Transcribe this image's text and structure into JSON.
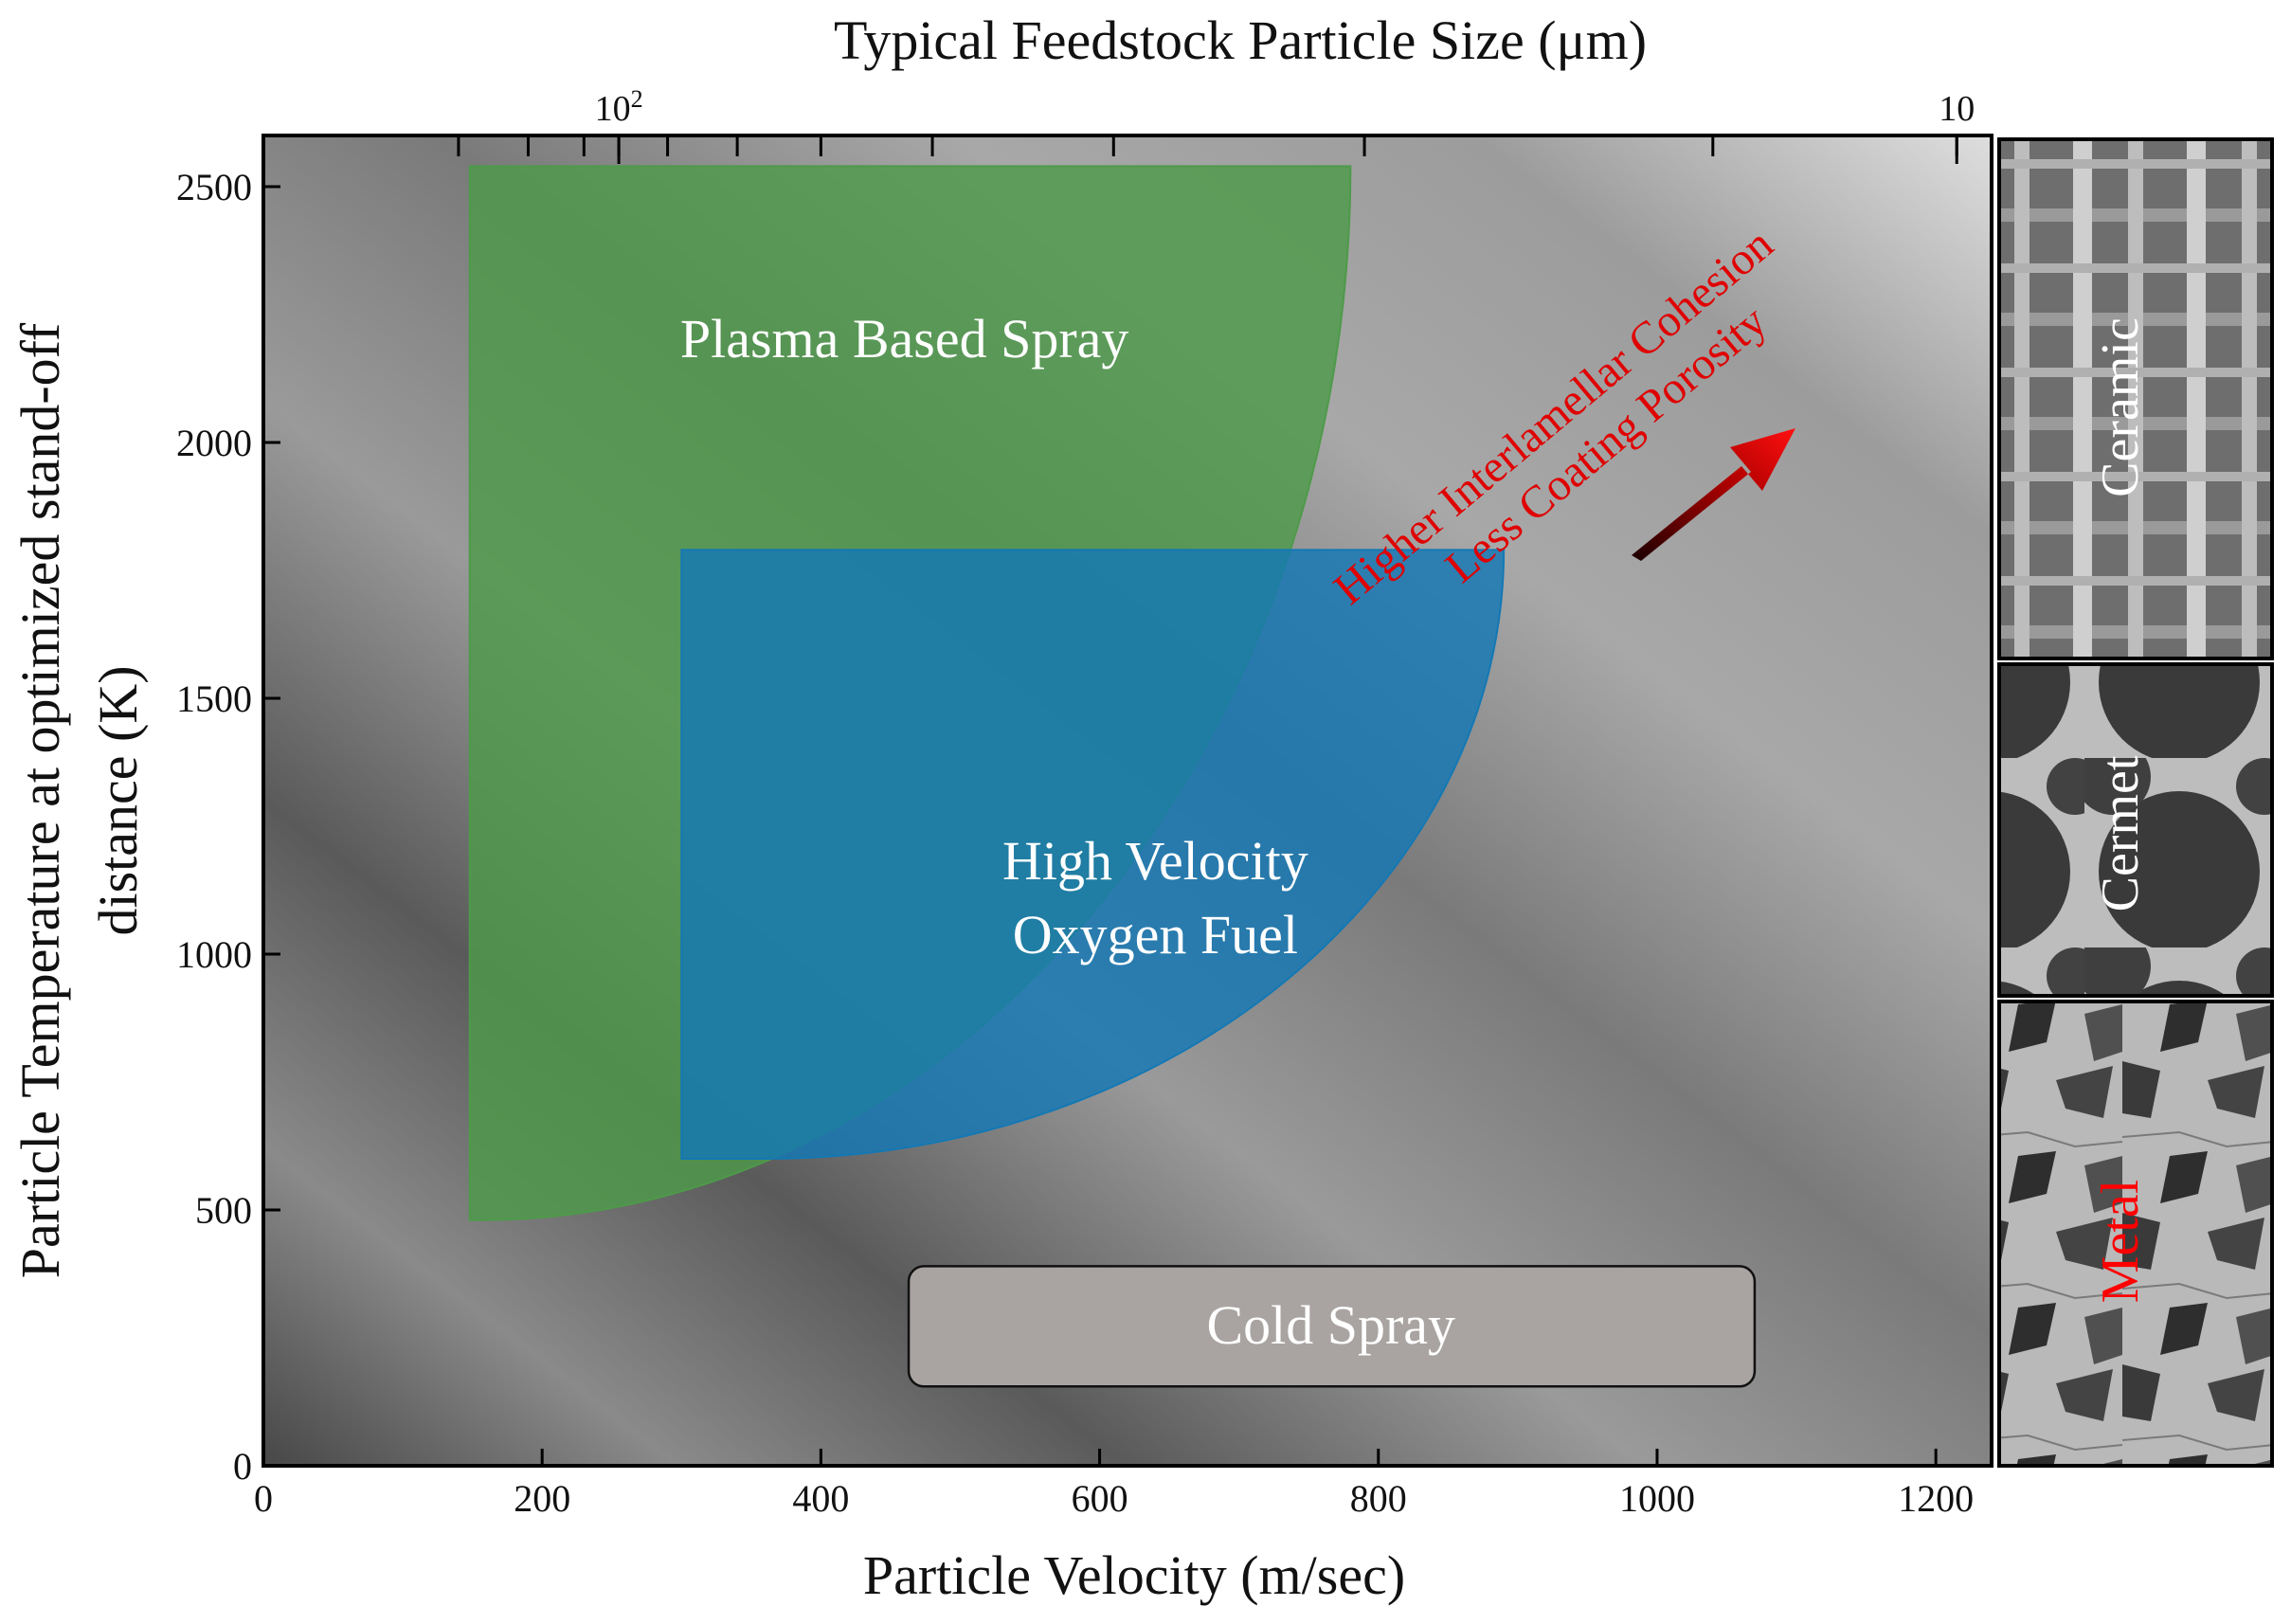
{
  "chart_data": {
    "type": "area",
    "title": "",
    "xlabel": "Particle Velocity (m/sec)",
    "ylabel": "Particle Temperature at optimized stand-off distance (K)",
    "ylabel_lines": [
      "Particle Temperature at optimized stand-off",
      "distance (K)"
    ],
    "top_xlabel": "Typical Feedstock Particle Size (μm)",
    "xlim": [
      0,
      1240
    ],
    "ylim": [
      0,
      2600
    ],
    "x_ticks": [
      0,
      200,
      400,
      600,
      800,
      1000,
      1200
    ],
    "y_ticks": [
      0,
      500,
      1000,
      1500,
      2000,
      2500
    ],
    "top_ticks": [
      {
        "label": "10",
        "sup": "2",
        "velocity": 255
      },
      {
        "label": "10",
        "sup": "",
        "velocity": 1215
      }
    ],
    "top_minor_tick_velocities": [
      140,
      190,
      230,
      255,
      290,
      340,
      400,
      480,
      610,
      790,
      1040,
      1215
    ],
    "regions": [
      {
        "name": "Plasma Based Spray",
        "text_lines": [
          "Plasma Based Spray"
        ],
        "color": "#4e9a4a",
        "x_min": 148,
        "x_max": 780,
        "y_min": 480,
        "y_max": 2540,
        "curve_bottom_x": 155,
        "curve_top_y": 2540,
        "label_x": 460,
        "label_y": 2200
      },
      {
        "name": "High Velocity Oxygen Fuel",
        "text_lines": [
          "High Velocity",
          "Oxygen Fuel"
        ],
        "color": "#1478b4",
        "x_min": 300,
        "x_max": 890,
        "y_min": 600,
        "y_max": 1790,
        "curve_bottom_x": 360,
        "curve_top_y": 1790,
        "label_x": 640,
        "label_y": 1180
      },
      {
        "name": "Cold Spray",
        "text_lines": [
          "Cold Spray"
        ],
        "color": "#a9a4a2",
        "x_min": 463,
        "x_max": 1070,
        "y_min": 155,
        "y_max": 390,
        "label_x": 766,
        "label_y": 272
      }
    ],
    "annotations": [
      {
        "text": "Higher Interlamellar Cohesion",
        "color": "#e00000"
      },
      {
        "text": "Less Coating Porosity",
        "color": "#e00000"
      }
    ],
    "micrographs": [
      {
        "label": "Ceramic",
        "label_color": "#ffffff"
      },
      {
        "label": "Cermet",
        "label_color": "#ffffff"
      },
      {
        "label": "Metal",
        "label_color": "#ff0000"
      }
    ]
  }
}
